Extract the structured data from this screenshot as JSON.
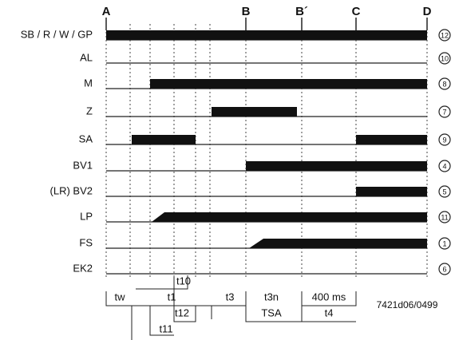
{
  "markers": [
    "A",
    "B",
    "B´",
    "C",
    "D"
  ],
  "rows": [
    {
      "label": "SB / R / W / GP",
      "terminal": "12"
    },
    {
      "label": "AL",
      "terminal": "10"
    },
    {
      "label": "M",
      "terminal": "8"
    },
    {
      "label": "Z",
      "terminal": "7"
    },
    {
      "label": "SA",
      "terminal": "9"
    },
    {
      "label": "BV1",
      "terminal": "4"
    },
    {
      "label": "(LR) BV2",
      "terminal": "5"
    },
    {
      "label": "LP",
      "terminal": "11"
    },
    {
      "label": "FS",
      "terminal": "1"
    },
    {
      "label": "EK2",
      "terminal": "6"
    }
  ],
  "time_labels": [
    "tw",
    "t10",
    "t1",
    "t12",
    "t11",
    "t3",
    "t3n",
    "400 ms",
    "TSA",
    "t4"
  ],
  "code": "7421d06/0499"
}
